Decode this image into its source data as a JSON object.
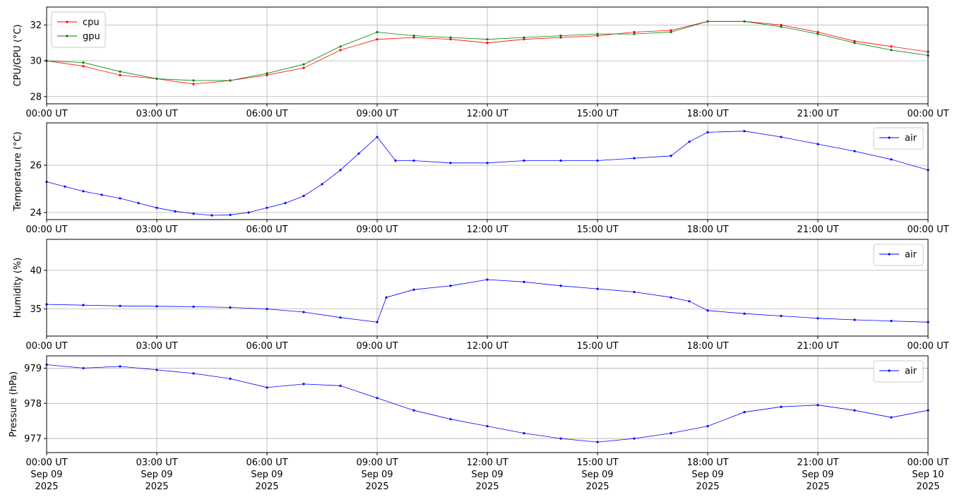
{
  "chart_data": [
    {
      "type": "line",
      "ylabel": "CPU/GPU (°C)",
      "ylim": [
        27.6,
        33.0
      ],
      "yticks": [
        28,
        30,
        32
      ],
      "xlim": [
        "2025-09-09T00:00:00Z",
        "2025-09-10T00:00:00Z"
      ],
      "grid": true,
      "legend_position": "top-left",
      "series": [
        {
          "name": "cpu",
          "color": "#ff0000",
          "x": [
            "2025-09-09T00:00:00Z",
            "2025-09-09T01:00:00Z",
            "2025-09-09T02:00:00Z",
            "2025-09-09T03:00:00Z",
            "2025-09-09T04:00:00Z",
            "2025-09-09T05:00:00Z",
            "2025-09-09T06:00:00Z",
            "2025-09-09T07:00:00Z",
            "2025-09-09T08:00:00Z",
            "2025-09-09T09:00:00Z",
            "2025-09-09T10:00:00Z",
            "2025-09-09T11:00:00Z",
            "2025-09-09T12:00:00Z",
            "2025-09-09T13:00:00Z",
            "2025-09-09T14:00:00Z",
            "2025-09-09T15:00:00Z",
            "2025-09-09T16:00:00Z",
            "2025-09-09T17:00:00Z",
            "2025-09-09T18:00:00Z",
            "2025-09-09T19:00:00Z",
            "2025-09-09T20:00:00Z",
            "2025-09-09T21:00:00Z",
            "2025-09-09T22:00:00Z",
            "2025-09-09T23:00:00Z",
            "2025-09-10T00:00:00Z"
          ],
          "values": [
            30.0,
            29.7,
            29.2,
            29.0,
            28.7,
            28.9,
            29.2,
            29.6,
            30.6,
            31.2,
            31.3,
            31.2,
            31.0,
            31.2,
            31.3,
            31.4,
            31.6,
            31.7,
            32.2,
            32.2,
            32.0,
            31.6,
            31.1,
            30.8,
            30.5
          ]
        },
        {
          "name": "gpu",
          "color": "#008000",
          "x": [
            "2025-09-09T00:00:00Z",
            "2025-09-09T01:00:00Z",
            "2025-09-09T02:00:00Z",
            "2025-09-09T03:00:00Z",
            "2025-09-09T04:00:00Z",
            "2025-09-09T05:00:00Z",
            "2025-09-09T06:00:00Z",
            "2025-09-09T07:00:00Z",
            "2025-09-09T08:00:00Z",
            "2025-09-09T09:00:00Z",
            "2025-09-09T10:00:00Z",
            "2025-09-09T11:00:00Z",
            "2025-09-09T12:00:00Z",
            "2025-09-09T13:00:00Z",
            "2025-09-09T14:00:00Z",
            "2025-09-09T15:00:00Z",
            "2025-09-09T16:00:00Z",
            "2025-09-09T17:00:00Z",
            "2025-09-09T18:00:00Z",
            "2025-09-09T19:00:00Z",
            "2025-09-09T20:00:00Z",
            "2025-09-09T21:00:00Z",
            "2025-09-09T22:00:00Z",
            "2025-09-09T23:00:00Z",
            "2025-09-10T00:00:00Z"
          ],
          "values": [
            30.0,
            29.9,
            29.4,
            29.0,
            28.9,
            28.9,
            29.3,
            29.8,
            30.8,
            31.6,
            31.4,
            31.3,
            31.2,
            31.3,
            31.4,
            31.5,
            31.5,
            31.6,
            32.2,
            32.2,
            31.9,
            31.5,
            31.0,
            30.6,
            30.3
          ]
        }
      ]
    },
    {
      "type": "line",
      "ylabel": "Temperature (°C)",
      "ylim": [
        23.7,
        27.8
      ],
      "yticks": [
        24,
        26
      ],
      "xlim": [
        "2025-09-09T00:00:00Z",
        "2025-09-10T00:00:00Z"
      ],
      "grid": true,
      "legend_position": "top-right",
      "series": [
        {
          "name": "air",
          "color": "#0000ff",
          "x": [
            "2025-09-09T00:00:00Z",
            "2025-09-09T00:30:00Z",
            "2025-09-09T01:00:00Z",
            "2025-09-09T01:30:00Z",
            "2025-09-09T02:00:00Z",
            "2025-09-09T02:30:00Z",
            "2025-09-09T03:00:00Z",
            "2025-09-09T03:30:00Z",
            "2025-09-09T04:00:00Z",
            "2025-09-09T04:30:00Z",
            "2025-09-09T05:00:00Z",
            "2025-09-09T05:30:00Z",
            "2025-09-09T06:00:00Z",
            "2025-09-09T06:30:00Z",
            "2025-09-09T07:00:00Z",
            "2025-09-09T07:30:00Z",
            "2025-09-09T08:00:00Z",
            "2025-09-09T08:30:00Z",
            "2025-09-09T09:00:00Z",
            "2025-09-09T09:30:00Z",
            "2025-09-09T10:00:00Z",
            "2025-09-09T11:00:00Z",
            "2025-09-09T12:00:00Z",
            "2025-09-09T13:00:00Z",
            "2025-09-09T14:00:00Z",
            "2025-09-09T15:00:00Z",
            "2025-09-09T16:00:00Z",
            "2025-09-09T17:00:00Z",
            "2025-09-09T17:30:00Z",
            "2025-09-09T18:00:00Z",
            "2025-09-09T19:00:00Z",
            "2025-09-09T20:00:00Z",
            "2025-09-09T21:00:00Z",
            "2025-09-09T22:00:00Z",
            "2025-09-09T23:00:00Z",
            "2025-09-10T00:00:00Z"
          ],
          "values": [
            25.3,
            25.1,
            24.9,
            24.75,
            24.6,
            24.4,
            24.2,
            24.05,
            23.95,
            23.88,
            23.9,
            24.0,
            24.2,
            24.4,
            24.7,
            25.2,
            25.8,
            26.5,
            27.2,
            26.2,
            26.2,
            26.1,
            26.1,
            26.2,
            26.2,
            26.2,
            26.3,
            26.4,
            27.0,
            27.4,
            27.45,
            27.2,
            26.9,
            26.6,
            26.25,
            25.8
          ]
        }
      ]
    },
    {
      "type": "line",
      "ylabel": "Humidity (%)",
      "ylim": [
        31.5,
        44.0
      ],
      "yticks": [
        35,
        40
      ],
      "xlim": [
        "2025-09-09T00:00:00Z",
        "2025-09-10T00:00:00Z"
      ],
      "grid": true,
      "legend_position": "top-right",
      "series": [
        {
          "name": "air",
          "color": "#0000ff",
          "x": [
            "2025-09-09T00:00:00Z",
            "2025-09-09T01:00:00Z",
            "2025-09-09T02:00:00Z",
            "2025-09-09T03:00:00Z",
            "2025-09-09T04:00:00Z",
            "2025-09-09T05:00:00Z",
            "2025-09-09T06:00:00Z",
            "2025-09-09T07:00:00Z",
            "2025-09-09T08:00:00Z",
            "2025-09-09T09:00:00Z",
            "2025-09-09T09:15:00Z",
            "2025-09-09T10:00:00Z",
            "2025-09-09T11:00:00Z",
            "2025-09-09T12:00:00Z",
            "2025-09-09T13:00:00Z",
            "2025-09-09T14:00:00Z",
            "2025-09-09T15:00:00Z",
            "2025-09-09T16:00:00Z",
            "2025-09-09T17:00:00Z",
            "2025-09-09T17:30:00Z",
            "2025-09-09T18:00:00Z",
            "2025-09-09T19:00:00Z",
            "2025-09-09T20:00:00Z",
            "2025-09-09T21:00:00Z",
            "2025-09-09T22:00:00Z",
            "2025-09-09T23:00:00Z",
            "2025-09-10T00:00:00Z"
          ],
          "values": [
            35.6,
            35.5,
            35.4,
            35.35,
            35.3,
            35.2,
            35.0,
            34.6,
            33.9,
            33.3,
            36.5,
            37.5,
            38.0,
            38.8,
            38.5,
            38.0,
            37.6,
            37.2,
            36.5,
            36.0,
            34.8,
            34.4,
            34.1,
            33.8,
            33.6,
            33.45,
            33.3
          ]
        }
      ]
    },
    {
      "type": "line",
      "ylabel": "Pressure (hPa)",
      "ylim": [
        976.6,
        979.35
      ],
      "yticks": [
        977,
        978,
        979
      ],
      "xlim": [
        "2025-09-09T00:00:00Z",
        "2025-09-10T00:00:00Z"
      ],
      "xticks": [
        {
          "time": "00:00 UT",
          "day": "Sep 09",
          "year": "2025"
        },
        {
          "time": "03:00 UT",
          "day": "Sep 09",
          "year": "2025"
        },
        {
          "time": "06:00 UT",
          "day": "Sep 09",
          "year": "2025"
        },
        {
          "time": "09:00 UT",
          "day": "Sep 09",
          "year": "2025"
        },
        {
          "time": "12:00 UT",
          "day": "Sep 09",
          "year": "2025"
        },
        {
          "time": "15:00 UT",
          "day": "Sep 09",
          "year": "2025"
        },
        {
          "time": "18:00 UT",
          "day": "Sep 09",
          "year": "2025"
        },
        {
          "time": "21:00 UT",
          "day": "Sep 09",
          "year": "2025"
        },
        {
          "time": "00:00 UT",
          "day": "Sep 10",
          "year": "2025"
        }
      ],
      "grid": true,
      "legend_position": "top-right",
      "series": [
        {
          "name": "air",
          "color": "#0000ff",
          "x": [
            "2025-09-09T00:00:00Z",
            "2025-09-09T01:00:00Z",
            "2025-09-09T02:00:00Z",
            "2025-09-09T03:00:00Z",
            "2025-09-09T04:00:00Z",
            "2025-09-09T05:00:00Z",
            "2025-09-09T06:00:00Z",
            "2025-09-09T07:00:00Z",
            "2025-09-09T08:00:00Z",
            "2025-09-09T09:00:00Z",
            "2025-09-09T10:00:00Z",
            "2025-09-09T11:00:00Z",
            "2025-09-09T12:00:00Z",
            "2025-09-09T13:00:00Z",
            "2025-09-09T14:00:00Z",
            "2025-09-09T15:00:00Z",
            "2025-09-09T16:00:00Z",
            "2025-09-09T17:00:00Z",
            "2025-09-09T18:00:00Z",
            "2025-09-09T19:00:00Z",
            "2025-09-09T20:00:00Z",
            "2025-09-09T21:00:00Z",
            "2025-09-09T22:00:00Z",
            "2025-09-09T23:00:00Z",
            "2025-09-10T00:00:00Z"
          ],
          "values": [
            979.1,
            979.0,
            979.05,
            978.95,
            978.85,
            978.7,
            978.45,
            978.55,
            978.5,
            978.15,
            977.8,
            977.55,
            977.35,
            977.15,
            977.0,
            976.9,
            977.0,
            977.15,
            977.35,
            977.75,
            977.9,
            977.95,
            977.8,
            977.6,
            977.8
          ]
        }
      ]
    }
  ],
  "xtick_labels": [
    "00:00 UT",
    "03:00 UT",
    "06:00 UT",
    "09:00 UT",
    "12:00 UT",
    "15:00 UT",
    "18:00 UT",
    "21:00 UT",
    "00:00 UT"
  ]
}
